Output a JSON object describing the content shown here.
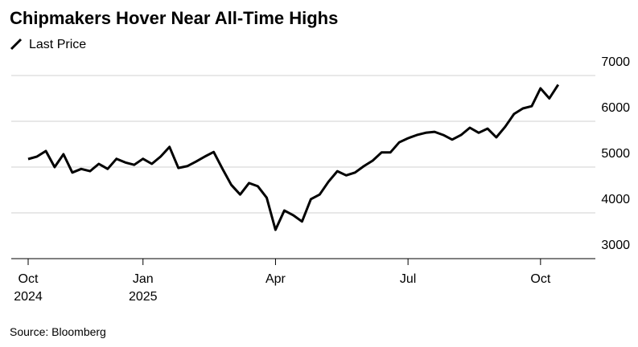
{
  "chart_data": {
    "type": "line",
    "title": "Chipmakers Hover Near All-Time Highs",
    "source": "Source: Bloomberg",
    "series": [
      {
        "name": "Last Price",
        "color": "#000000",
        "values": [
          5175,
          5230,
          5350,
          5000,
          5280,
          4880,
          4960,
          4910,
          5070,
          4960,
          5180,
          5100,
          5050,
          5180,
          5070,
          5230,
          5440,
          4980,
          5020,
          5120,
          5230,
          5330,
          4960,
          4610,
          4400,
          4650,
          4580,
          4330,
          3630,
          4050,
          3950,
          3810,
          4300,
          4400,
          4680,
          4910,
          4820,
          4880,
          5020,
          5140,
          5320,
          5320,
          5540,
          5630,
          5700,
          5750,
          5770,
          5700,
          5600,
          5700,
          5860,
          5750,
          5840,
          5650,
          5880,
          6160,
          6280,
          6330,
          6720,
          6500,
          6800
        ]
      }
    ],
    "xticks": [
      {
        "value": 0,
        "label": "Oct",
        "year": "2024"
      },
      {
        "value": 13,
        "label": "Jan",
        "year": "2025"
      },
      {
        "value": 28,
        "label": "Apr"
      },
      {
        "value": 43,
        "label": "Jul"
      },
      {
        "value": 58,
        "label": "Oct"
      }
    ],
    "ylim": [
      3000,
      7000
    ],
    "yticks": [
      3000,
      4000,
      5000,
      6000,
      7000
    ],
    "grid": true
  }
}
